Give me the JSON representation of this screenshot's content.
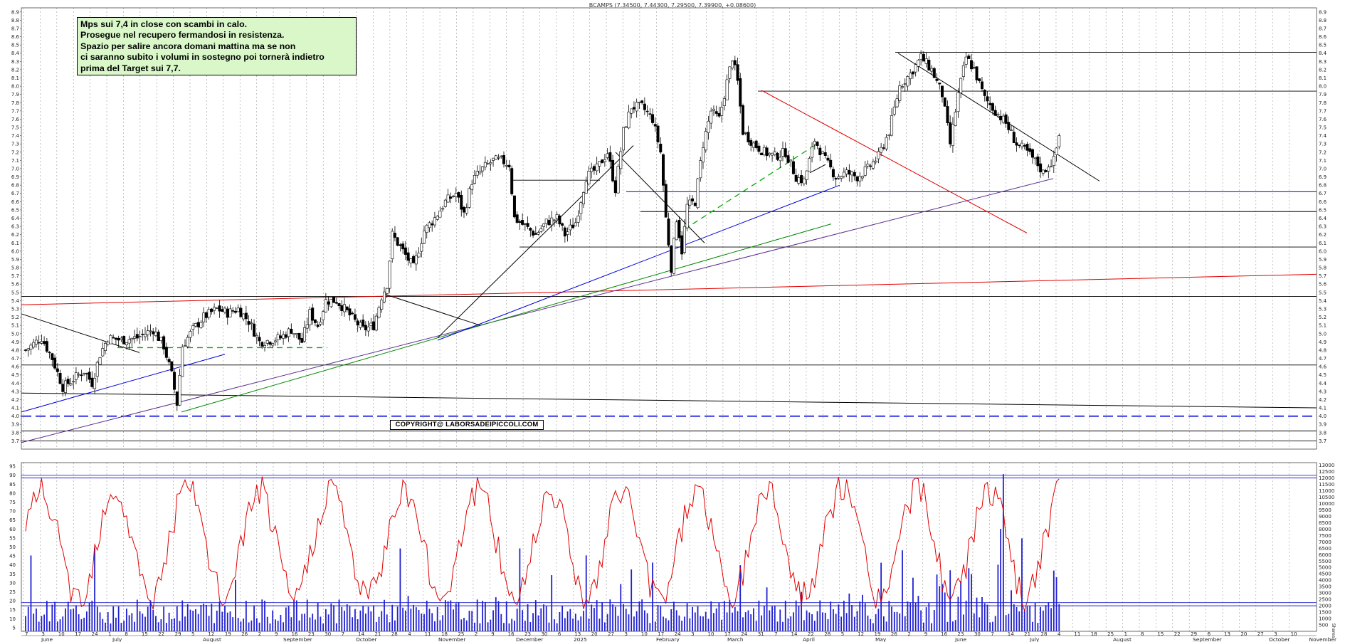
{
  "chart_data": [
    {
      "type": "candlestick",
      "title": "BCAMPS (7.34500, 7.44300, 7.29500, 7.39900, +0.08600)",
      "ylim": [
        3.6,
        8.95
      ],
      "y_ticks": [
        3.7,
        3.8,
        3.9,
        4.0,
        4.1,
        4.2,
        4.3,
        4.4,
        4.5,
        4.6,
        4.7,
        4.8,
        4.9,
        5.0,
        5.1,
        5.2,
        5.3,
        5.4,
        5.5,
        5.6,
        5.7,
        5.8,
        5.9,
        6.0,
        6.1,
        6.2,
        6.3,
        6.4,
        6.5,
        6.6,
        6.7,
        6.8,
        6.9,
        7.0,
        7.1,
        7.2,
        7.3,
        7.4,
        7.5,
        7.6,
        7.7,
        7.8,
        7.9,
        8.0,
        8.1,
        8.2,
        8.3,
        8.4,
        8.5,
        8.6,
        8.7,
        8.8,
        8.9
      ],
      "y_tick_labels_left": [
        "3.7",
        "3.8",
        "3.9",
        "4.0",
        "4.1",
        "4.2",
        "4.3",
        "4.4",
        "4.5",
        "4.6",
        "4.7",
        "4.8",
        "4.9",
        "5.0",
        "5.1",
        "5.2",
        "5.3",
        "5.4",
        "5.5",
        "5.6",
        "5.7",
        "5.8",
        "5.9",
        "6.0",
        "6.1",
        "6.2",
        "6.3",
        "6.4",
        "6.5",
        "6.6",
        "6.7",
        "6.8",
        "6.9",
        "7.0",
        "7.1",
        "7.2",
        "7.3",
        "7.4",
        "7.5",
        "7.6",
        "7.7",
        "7.8",
        "7.9",
        "8.0",
        "8.1",
        "8.2",
        "8.3",
        "8.4",
        "8.5",
        "8.6",
        "8.7",
        "8.8",
        "8.9"
      ],
      "y_tick_labels_right": [
        "3.7",
        "3.8",
        "3.9",
        "4.0",
        "4.1",
        "4.2",
        "4.3",
        "4.4",
        "4.5",
        "4.6",
        "4.7",
        "4.8",
        "4.9",
        "5.0",
        "5.1",
        "5.2",
        "5.3",
        "5.4",
        "5.5",
        "5.6",
        "5.7",
        "5.8",
        "5.9",
        "6.0",
        "6.1",
        "6.2",
        "6.3",
        "6.4",
        "6.5",
        "6.6",
        "6.7",
        "6.8",
        "6.9",
        "7.0",
        "7.1",
        "7.2",
        "7.3",
        "7.4",
        "7.5",
        "7.6",
        "7.7",
        "7.8",
        "7.9",
        "8.0",
        "8.1",
        "8.2",
        "8.3",
        "8.4",
        "8.5",
        "8.6",
        "8.7",
        "8.8",
        "8.9"
      ],
      "price_path": [
        [
          0,
          4.8
        ],
        [
          6,
          4.95
        ],
        [
          10,
          4.7
        ],
        [
          14,
          4.35
        ],
        [
          18,
          4.45
        ],
        [
          22,
          4.55
        ],
        [
          25,
          4.4
        ],
        [
          28,
          4.75
        ],
        [
          31,
          4.95
        ],
        [
          36,
          4.92
        ],
        [
          42,
          4.95
        ],
        [
          48,
          5.05
        ],
        [
          52,
          4.85
        ],
        [
          55,
          4.5
        ],
        [
          57,
          4.15
        ],
        [
          59,
          4.85
        ],
        [
          63,
          5.05
        ],
        [
          67,
          5.2
        ],
        [
          72,
          5.3
        ],
        [
          76,
          5.25
        ],
        [
          80,
          5.3
        ],
        [
          84,
          5.15
        ],
        [
          88,
          4.9
        ],
        [
          92,
          4.92
        ],
        [
          96,
          4.95
        ],
        [
          100,
          5.05
        ],
        [
          104,
          4.9
        ],
        [
          107,
          5.25
        ],
        [
          110,
          5.1
        ],
        [
          113,
          5.4
        ],
        [
          117,
          5.4
        ],
        [
          120,
          5.3
        ],
        [
          124,
          5.15
        ],
        [
          127,
          5.05
        ],
        [
          131,
          5.1
        ],
        [
          134,
          5.45
        ],
        [
          136,
          5.6
        ],
        [
          138,
          6.2
        ],
        [
          142,
          6.0
        ],
        [
          146,
          5.8
        ],
        [
          150,
          6.25
        ],
        [
          154,
          6.4
        ],
        [
          158,
          6.6
        ],
        [
          162,
          6.7
        ],
        [
          165,
          6.45
        ],
        [
          168,
          6.85
        ],
        [
          172,
          7.0
        ],
        [
          176,
          7.1
        ],
        [
          179,
          7.1
        ],
        [
          182,
          7.05
        ],
        [
          184,
          6.4
        ],
        [
          188,
          6.3
        ],
        [
          192,
          6.2
        ],
        [
          196,
          6.35
        ],
        [
          200,
          6.4
        ],
        [
          203,
          6.2
        ],
        [
          207,
          6.35
        ],
        [
          211,
          6.9
        ],
        [
          215,
          7.0
        ],
        [
          219,
          7.2
        ],
        [
          222,
          6.75
        ],
        [
          225,
          7.45
        ],
        [
          228,
          7.75
        ],
        [
          232,
          7.75
        ],
        [
          236,
          7.6
        ],
        [
          239,
          7.2
        ],
        [
          241,
          6.4
        ],
        [
          243,
          5.8
        ],
        [
          245,
          6.4
        ],
        [
          247,
          6.0
        ],
        [
          249,
          6.55
        ],
        [
          252,
          6.6
        ],
        [
          255,
          7.3
        ],
        [
          258,
          7.7
        ],
        [
          261,
          7.6
        ],
        [
          264,
          8.05
        ],
        [
          266,
          8.35
        ],
        [
          268,
          8.05
        ],
        [
          270,
          7.45
        ],
        [
          274,
          7.3
        ],
        [
          278,
          7.2
        ],
        [
          282,
          7.15
        ],
        [
          286,
          7.2
        ],
        [
          290,
          6.9
        ],
        [
          293,
          6.85
        ],
        [
          297,
          7.35
        ],
        [
          301,
          7.1
        ],
        [
          305,
          6.9
        ],
        [
          309,
          6.95
        ],
        [
          313,
          6.9
        ],
        [
          317,
          7.0
        ],
        [
          321,
          7.15
        ],
        [
          325,
          7.45
        ],
        [
          329,
          8.0
        ],
        [
          333,
          8.15
        ],
        [
          337,
          8.35
        ],
        [
          341,
          8.2
        ],
        [
          345,
          7.9
        ],
        [
          348,
          7.3
        ],
        [
          351,
          7.9
        ],
        [
          354,
          8.35
        ],
        [
          357,
          8.2
        ],
        [
          361,
          7.85
        ],
        [
          365,
          7.7
        ],
        [
          369,
          7.55
        ],
        [
          373,
          7.3
        ],
        [
          377,
          7.2
        ],
        [
          381,
          7.05
        ],
        [
          383,
          6.95
        ],
        [
          385,
          7.05
        ],
        [
          387,
          7.1
        ],
        [
          389,
          7.4
        ]
      ],
      "x_tick_labels": [
        "7",
        "3",
        "10",
        "17",
        "24",
        "1",
        "8",
        "15",
        "22",
        "29",
        "5",
        "12",
        "19",
        "26",
        "2",
        "9",
        "16",
        "23",
        "30",
        "7",
        "14",
        "21",
        "28",
        "4",
        "11",
        "18",
        "25",
        "2",
        "9",
        "16",
        "23",
        "30",
        "6",
        "13",
        "20",
        "27",
        "3",
        "10",
        "17",
        "24",
        "3",
        "10",
        "17",
        "24",
        "31",
        "7",
        "14",
        "22",
        "28",
        "5",
        "12",
        "19",
        "26",
        "2",
        "9",
        "16",
        "23",
        "30",
        "7",
        "14",
        "21",
        "28",
        "4",
        "11",
        "18",
        "25",
        "1",
        "8",
        "15",
        "22",
        "29",
        "6",
        "13",
        "20",
        "27",
        "3",
        "10"
      ],
      "month_labels": [
        "June",
        "July",
        "August",
        "September",
        "October",
        "November",
        "December",
        "2025",
        "February",
        "March",
        "April",
        "May",
        "June",
        "July",
        "August",
        "September",
        "October",
        "November"
      ]
    },
    {
      "type": "bar",
      "name": "volume",
      "ylim": [
        0,
        13200
      ],
      "y_tick_labels_right": [
        "500",
        "1000",
        "1500",
        "2000",
        "2500",
        "3000",
        "3500",
        "4000",
        "4500",
        "5000",
        "5500",
        "6000",
        "6500",
        "7000",
        "7500",
        "8000",
        "8500",
        "9000",
        "9500",
        "10000",
        "10500",
        "11000",
        "11500",
        "12000",
        "12500",
        "13000"
      ],
      "right_axis_footer": "Shares",
      "markers": [
        2000,
        12000
      ]
    },
    {
      "type": "line",
      "name": "oscillator",
      "ylim": [
        3,
        97
      ],
      "y_tick_labels_left": [
        "5",
        "10",
        "15",
        "20",
        "25",
        "30",
        "35",
        "40",
        "45",
        "50",
        "55",
        "60",
        "65",
        "70",
        "75",
        "80",
        "85",
        "90",
        "95"
      ],
      "markers": [
        19,
        90
      ]
    }
  ],
  "annotation": {
    "lines": [
      "Mps sui 7,4 in close con scambi in calo.",
      "Prosegue nel recupero fermandosi in resistenza.",
      "Spazio per  salire ancora domani mattina ma se non",
      "ci saranno subito i volumi in sostegno poi tornerà indietro",
      "prima del Target sui 7,7."
    ],
    "copyright": "COPYRIGHT@ LABORSADEIPICCOLI.COM"
  },
  "colors": {
    "red_line": "#e00000",
    "blue_line": "#0000dd",
    "green_line": "#008800",
    "purple_line": "#5a2d91",
    "dashed_green": "#00aa00",
    "volume_bar": "#2020d0",
    "grid": "#9a9a9a",
    "note_bg": "#d9f7c9"
  }
}
